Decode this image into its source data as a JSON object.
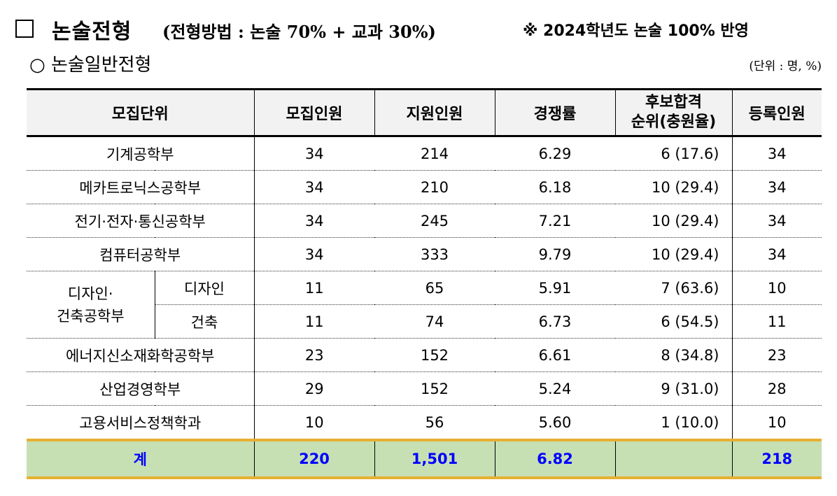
{
  "header": {
    "title": "논술전형",
    "subtitle_paren": "(전형방법 : 논술 70% + 교과 30%)",
    "notice": "※ 2024학년도 논술 100% 반영"
  },
  "section": {
    "title": "○ 논술일반전형",
    "unit": "(단위 : 명, %)"
  },
  "table": {
    "headers": {
      "unit": "모집단위",
      "quota": "모집인원",
      "applicants": "지원인원",
      "ratio": "경쟁률",
      "waitlist_line1": "후보합격",
      "waitlist_line2": "순위(충원율)",
      "enrolled": "등록인원"
    },
    "rows": [
      {
        "name": "기계공학부",
        "quota": "34",
        "applicants": "214",
        "ratio": "6.29",
        "waitlist": "6 (17.6)",
        "enrolled": "34"
      },
      {
        "name": "메카트로닉스공학부",
        "quota": "34",
        "applicants": "210",
        "ratio": "6.18",
        "waitlist": "10 (29.4)",
        "enrolled": "34"
      },
      {
        "name": "전기·전자·통신공학부",
        "quota": "34",
        "applicants": "245",
        "ratio": "7.21",
        "waitlist": "10 (29.4)",
        "enrolled": "34"
      },
      {
        "name": "컴퓨터공학부",
        "quota": "34",
        "applicants": "333",
        "ratio": "9.79",
        "waitlist": "10 (29.4)",
        "enrolled": "34"
      }
    ],
    "group": {
      "name_line1": "디자인·",
      "name_line2": "건축공학부",
      "rows": [
        {
          "name": "디자인",
          "quota": "11",
          "applicants": "65",
          "ratio": "5.91",
          "waitlist": "7 (63.6)",
          "enrolled": "10"
        },
        {
          "name": "건축",
          "quota": "11",
          "applicants": "74",
          "ratio": "6.73",
          "waitlist": "6 (54.5)",
          "enrolled": "11"
        }
      ]
    },
    "rows_after": [
      {
        "name": "에너지신소재화학공학부",
        "quota": "23",
        "applicants": "152",
        "ratio": "6.61",
        "waitlist": "8 (34.8)",
        "enrolled": "23"
      },
      {
        "name": "산업경영학부",
        "quota": "29",
        "applicants": "152",
        "ratio": "5.24",
        "waitlist": "9 (31.0)",
        "enrolled": "28"
      },
      {
        "name": "고용서비스정책학과",
        "quota": "10",
        "applicants": "56",
        "ratio": "5.60",
        "waitlist": "1 (10.0)",
        "enrolled": "10"
      }
    ],
    "total": {
      "label": "계",
      "quota": "220",
      "applicants": "1,501",
      "ratio": "6.82",
      "waitlist": "",
      "enrolled": "218"
    }
  }
}
